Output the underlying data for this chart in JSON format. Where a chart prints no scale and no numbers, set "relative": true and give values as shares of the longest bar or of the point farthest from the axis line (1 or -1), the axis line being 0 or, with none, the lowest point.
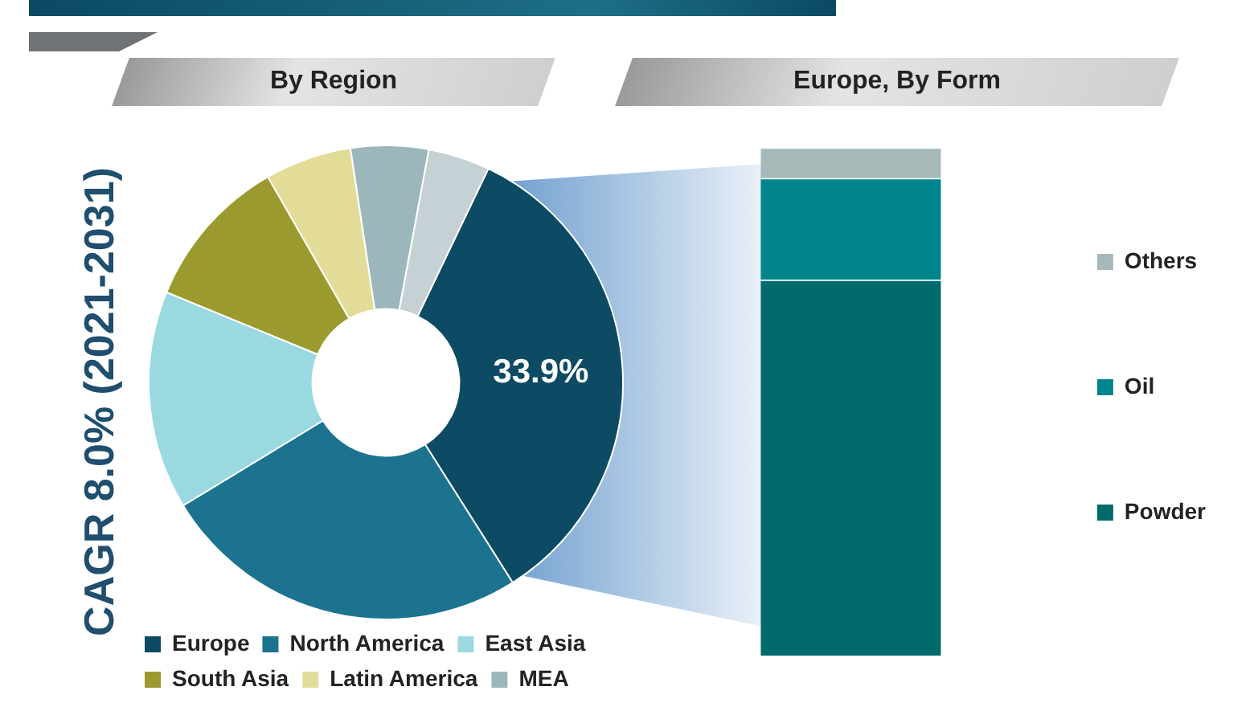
{
  "chart_data": [
    {
      "type": "donut",
      "title": "By Region",
      "categories": [
        "Europe",
        "North America",
        "East Asia",
        "South Asia",
        "Latin America",
        "MEA",
        null
      ],
      "values": [
        33.9,
        25.3,
        14.9,
        10.5,
        5.9,
        5.3,
        4.2
      ],
      "colors": [
        "#0d4a63",
        "#1c7390",
        "#9ad9e0",
        "#9b9a2e",
        "#e3dc98",
        "#9bb7bc",
        "#c5d1d4"
      ],
      "value_labels": [
        "33.9%",
        null,
        null,
        null,
        null,
        null,
        null
      ],
      "legend": "bottom",
      "annotations": [
        "CAGR 8.0% (2021-2031)"
      ]
    },
    {
      "type": "bar",
      "title": "Europe, By Form",
      "categories": [
        null
      ],
      "stacked": true,
      "relative": true,
      "legend": "right",
      "series": [
        {
          "name": "Powder",
          "color": "#006a6c",
          "values": [
            0.74
          ]
        },
        {
          "name": "Oil",
          "color": "#00858c",
          "values": [
            0.2
          ]
        },
        {
          "name": "Others",
          "color": "#a6b9b9",
          "values": [
            0.06
          ]
        }
      ]
    }
  ]
}
